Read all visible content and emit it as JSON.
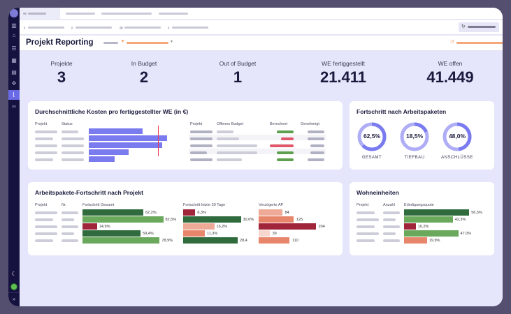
{
  "header": {
    "page_title": "Projekt Reporting"
  },
  "kpis": [
    {
      "label": "Projekte",
      "value": "3"
    },
    {
      "label": "In Budget",
      "value": "2"
    },
    {
      "label": "Out of Budget",
      "value": "1"
    },
    {
      "label": "WE fertiggestellt",
      "value": "21.411"
    },
    {
      "label": "WE offen",
      "value": "41.449"
    }
  ],
  "cost_card": {
    "title": "Durchschnittliche Kosten pro fertiggestellter WE (in €)",
    "headers": [
      "Projekt",
      "Status"
    ],
    "bar_color": "#7b7bf0",
    "threshold_color": "#e8394f",
    "values": [
      0.76,
      1.1,
      1.03,
      0.56,
      0.36
    ],
    "threshold": 0.97,
    "table_headers": [
      "Projekt",
      "Offenes Budget",
      "Berechnet",
      "Genehmigt"
    ],
    "berechnet_status": [
      "green",
      "red",
      "red",
      "green",
      "green"
    ]
  },
  "progress_card": {
    "title": "Fortschritt nach Arbeitspaketen",
    "donuts": [
      {
        "label": "GESAMT",
        "value": "62,5%",
        "fraction": 0.625
      },
      {
        "label": "TIEFBAU",
        "value": "18,5%",
        "fraction": 0.185
      },
      {
        "label": "ANSCHLÜSSE",
        "value": "48,0%",
        "fraction": 0.48
      }
    ]
  },
  "ap_card": {
    "title": "Arbeitspakete-Fortschritt nach Projekt",
    "headers": [
      "Projekt",
      "Nr.",
      "Fortschritt Gesamt",
      "Fortschritt letzte 30 Tage",
      "Verzögerte AP"
    ],
    "gesamt": [
      {
        "value": 62.2,
        "label": "62,2%",
        "color": "#2f6b3c"
      },
      {
        "value": 82.5,
        "label": "82,5%",
        "color": "#6aa85c"
      },
      {
        "value": 14.9,
        "label": "14,9%",
        "color": "#a0243a"
      },
      {
        "value": 59.4,
        "label": "59,4%",
        "color": "#2f6b3c"
      },
      {
        "value": 78.9,
        "label": "78,9%",
        "color": "#6aa85c"
      }
    ],
    "last30": [
      {
        "value": 6.3,
        "label": "6,3%",
        "color": "#a0243a"
      },
      {
        "value": 30.0,
        "label": "30,0%",
        "color": "#2f6b3c"
      },
      {
        "value": 16.2,
        "label": "16,2%",
        "color": "#eeaa97"
      },
      {
        "value": 11.3,
        "label": "11,3%",
        "color": "#e8866c"
      },
      {
        "value": 28.4,
        "label": "28,4",
        "color": "#2f6b3c"
      }
    ],
    "delayed": [
      {
        "value": 84,
        "label": "84",
        "color": "#eeaa97"
      },
      {
        "value": 125,
        "label": "125",
        "color": "#e8866c"
      },
      {
        "value": 204,
        "label": "204",
        "color": "#a0243a"
      },
      {
        "value": 39,
        "label": "39",
        "color": "#f7d6cd"
      },
      {
        "value": 110,
        "label": "110",
        "color": "#e8866c"
      }
    ]
  },
  "we_card": {
    "title": "Wohneinheiten",
    "headers": [
      "Projekt",
      "Anzahl",
      "Erledigungsquote"
    ],
    "rows": [
      {
        "value": 56.5,
        "label": "56,5%",
        "color": "#2f6b3c"
      },
      {
        "value": 42.3,
        "label": "42,3%",
        "color": "#6aa85c"
      },
      {
        "value": 10.2,
        "label": "10,2%",
        "color": "#a0243a"
      },
      {
        "value": 47.0,
        "label": "47,0%",
        "color": "#6aa85c"
      },
      {
        "value": 19.9,
        "label": "19,9%",
        "color": "#e8866c"
      }
    ]
  }
}
